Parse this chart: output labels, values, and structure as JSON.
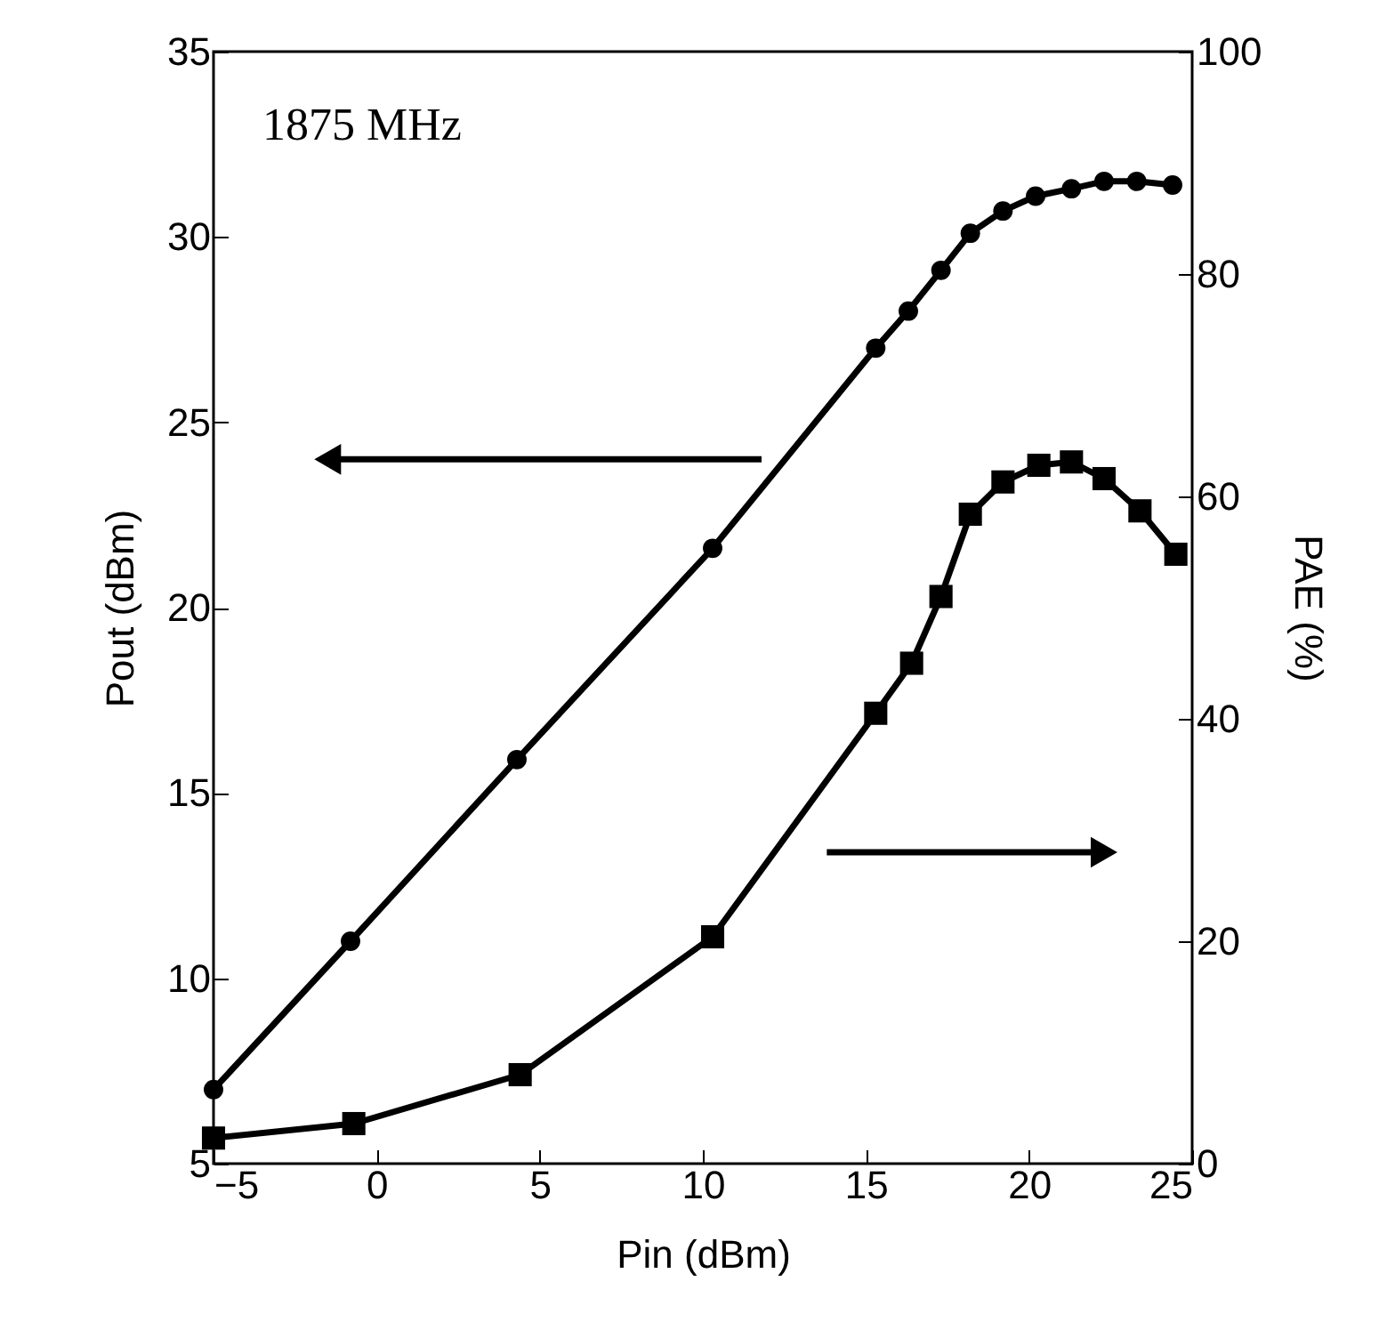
{
  "chart_data": {
    "type": "line",
    "xlabel": "Pin (dBm)",
    "ylabel": "Pout (dBm)",
    "y2label": "PAE (%)",
    "annotations": [
      "1875 MHz"
    ],
    "xlim": [
      -5,
      25
    ],
    "xticks": [
      -5,
      0,
      5,
      10,
      15,
      20,
      25
    ],
    "ylim": [
      5,
      35
    ],
    "yticks": [
      5,
      10,
      15,
      20,
      25,
      30,
      35
    ],
    "y2lim": [
      0,
      100
    ],
    "y2ticks": [
      0,
      20,
      40,
      60,
      80,
      100
    ],
    "grid": false,
    "line_style": "solid",
    "series": [
      {
        "color": "#000000",
        "marker": "circle",
        "x": [
          -5,
          -0.8,
          4.3,
          10.3,
          15.3,
          16.3,
          17.3,
          18.2,
          19.2,
          20.2,
          21.3,
          22.3,
          23.3,
          24.4
        ],
        "values": [
          7.0,
          11.0,
          15.9,
          21.6,
          27.0,
          28.0,
          29.1,
          30.1,
          30.7,
          31.1,
          31.3,
          31.5,
          31.5,
          31.4
        ]
      },
      {
        "color": "#000000",
        "marker": "square",
        "axis": "y2",
        "x": [
          -5,
          -0.7,
          4.4,
          10.3,
          15.3,
          16.4,
          17.3,
          18.2,
          19.2,
          20.3,
          21.3,
          22.3,
          23.4,
          24.5
        ],
        "values": [
          2.3,
          3.6,
          8.0,
          20.4,
          40.5,
          45.0,
          51.0,
          58.4,
          61.3,
          62.8,
          63.1,
          61.6,
          58.7,
          54.8
        ]
      }
    ]
  }
}
